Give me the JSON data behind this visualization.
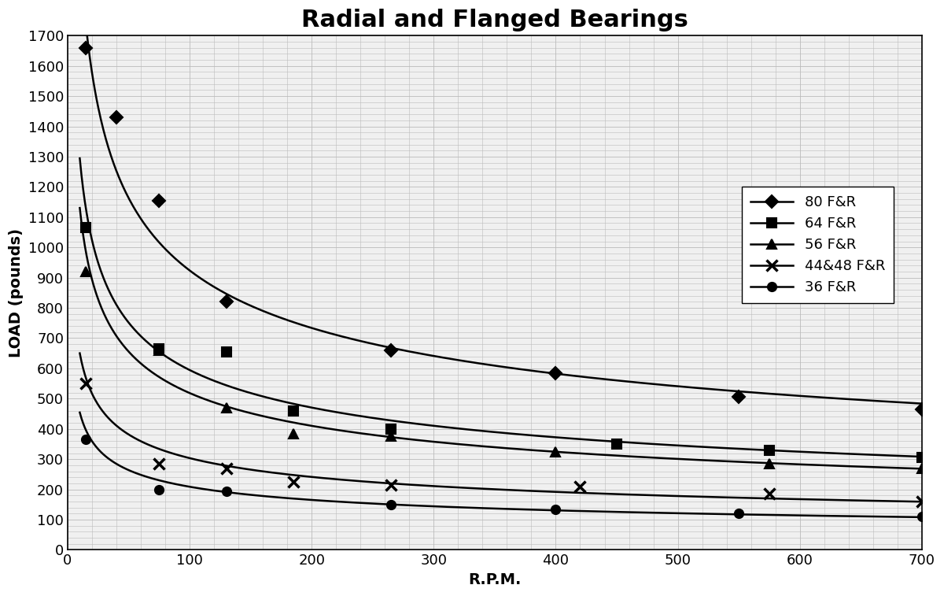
{
  "title": "Radial and Flanged Bearings",
  "xlabel": "R.P.M.",
  "ylabel": "LOAD (pounds)",
  "xlim": [
    0,
    700
  ],
  "ylim": [
    0,
    1700
  ],
  "xticks": [
    0,
    100,
    200,
    300,
    400,
    500,
    600,
    700
  ],
  "yticks": [
    0,
    100,
    200,
    300,
    400,
    500,
    600,
    700,
    800,
    900,
    1000,
    1100,
    1200,
    1300,
    1400,
    1500,
    1600,
    1700
  ],
  "series": [
    {
      "label": "80 F&R",
      "marker": "D",
      "x": [
        10,
        15,
        40,
        75,
        130,
        265,
        400,
        550,
        700
      ],
      "y": [
        1800,
        1660,
        1430,
        1155,
        820,
        660,
        585,
        505,
        465
      ]
    },
    {
      "label": "64 F&R",
      "marker": "s",
      "x": [
        10,
        15,
        75,
        130,
        185,
        265,
        450,
        575,
        700
      ],
      "y": [
        1300,
        1065,
        665,
        655,
        460,
        400,
        350,
        330,
        305
      ]
    },
    {
      "label": "56 F&R",
      "marker": "^",
      "x": [
        10,
        15,
        75,
        130,
        185,
        265,
        400,
        575,
        700
      ],
      "y": [
        1150,
        920,
        660,
        470,
        385,
        375,
        325,
        285,
        270
      ]
    },
    {
      "label": "44&48 F&R",
      "marker": "x",
      "x": [
        10,
        15,
        75,
        130,
        185,
        265,
        420,
        575,
        700
      ],
      "y": [
        750,
        550,
        285,
        270,
        225,
        215,
        210,
        185,
        160
      ]
    },
    {
      "label": "36 F&R",
      "marker": "o",
      "x": [
        10,
        15,
        75,
        130,
        265,
        400,
        550,
        700
      ],
      "y": [
        520,
        365,
        200,
        195,
        150,
        135,
        120,
        110
      ]
    }
  ],
  "plot_x_data": [
    {
      "label": "80 F&R",
      "marker": "D",
      "x": [
        15,
        40,
        75,
        130,
        265,
        400,
        550,
        700
      ],
      "y": [
        1660,
        1430,
        1155,
        820,
        660,
        585,
        505,
        465
      ]
    },
    {
      "label": "64 F&R",
      "marker": "s",
      "x": [
        15,
        75,
        130,
        185,
        265,
        450,
        575,
        700
      ],
      "y": [
        1065,
        665,
        655,
        460,
        400,
        350,
        330,
        305
      ]
    },
    {
      "label": "56 F&R",
      "marker": "^",
      "x": [
        15,
        75,
        130,
        185,
        265,
        400,
        575,
        700
      ],
      "y": [
        920,
        660,
        470,
        385,
        375,
        325,
        285,
        270
      ]
    },
    {
      "label": "44&48 F&R",
      "marker": "x",
      "x": [
        15,
        75,
        130,
        185,
        265,
        420,
        575,
        700
      ],
      "y": [
        550,
        285,
        270,
        225,
        215,
        210,
        185,
        160
      ]
    },
    {
      "label": "36 F&R",
      "marker": "o",
      "x": [
        15,
        75,
        130,
        265,
        400,
        550,
        700
      ],
      "y": [
        365,
        200,
        195,
        150,
        135,
        120,
        110
      ]
    }
  ],
  "line_color": "#000000",
  "background_color": "#f0f0f0",
  "grid_color": "#bbbbbb",
  "title_fontsize": 22,
  "label_fontsize": 14,
  "tick_fontsize": 13,
  "legend_fontsize": 13
}
